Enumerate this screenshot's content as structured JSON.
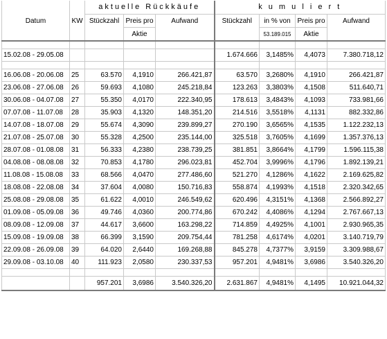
{
  "header": {
    "aktuelle": "aktuelle Rückkäufe",
    "kumuliert": "k u m u l i e r t",
    "datum": "Datum",
    "kw": "KW",
    "stueckzahl": "Stückzahl",
    "preis_pro": "Preis pro",
    "aktie": "Aktie",
    "aufwand": "Aufwand",
    "stueckzahl_k": "Stückzahl",
    "in_prozent_von": "in % von",
    "basis": "53.189.015",
    "preis_pro_k": "Preis pro",
    "aktie_k": "Aktie",
    "aufwand_k": "Aufwand"
  },
  "opening": {
    "datum": "15.02.08 - 29.05.08",
    "kw": "",
    "stueck": "",
    "preis": "",
    "aufwand": "",
    "k_stueck": "1.674.666",
    "k_pct": "3,1485%",
    "k_preis": "4,4073",
    "k_aufwand": "7.380.718,12"
  },
  "rows": [
    {
      "datum": "16.06.08 - 20.06.08",
      "kw": "25",
      "stueck": "63.570",
      "preis": "4,1910",
      "aufwand": "266.421,87",
      "k_stueck": "63.570",
      "k_pct": "3,2680%",
      "k_preis": "4,1910",
      "k_aufwand": "266.421,87"
    },
    {
      "datum": "23.06.08 - 27.06.08",
      "kw": "26",
      "stueck": "59.693",
      "preis": "4,1080",
      "aufwand": "245.218,84",
      "k_stueck": "123.263",
      "k_pct": "3,3803%",
      "k_preis": "4,1508",
      "k_aufwand": "511.640,71"
    },
    {
      "datum": "30.06.08 - 04.07.08",
      "kw": "27",
      "stueck": "55.350",
      "preis": "4,0170",
      "aufwand": "222.340,95",
      "k_stueck": "178.613",
      "k_pct": "3,4843%",
      "k_preis": "4,1093",
      "k_aufwand": "733.981,66"
    },
    {
      "datum": "07.07.08 - 11.07.08",
      "kw": "28",
      "stueck": "35.903",
      "preis": "4,1320",
      "aufwand": "148.351,20",
      "k_stueck": "214.516",
      "k_pct": "3,5518%",
      "k_preis": "4,1131",
      "k_aufwand": "882.332,86"
    },
    {
      "datum": "14.07.08 - 18.07.08",
      "kw": "29",
      "stueck": "55.674",
      "preis": "4,3090",
      "aufwand": "239.899,27",
      "k_stueck": "270.190",
      "k_pct": "3,6565%",
      "k_preis": "4,1535",
      "k_aufwand": "1.122.232,13"
    },
    {
      "datum": "21.07.08 - 25.07.08",
      "kw": "30",
      "stueck": "55.328",
      "preis": "4,2500",
      "aufwand": "235.144,00",
      "k_stueck": "325.518",
      "k_pct": "3,7605%",
      "k_preis": "4,1699",
      "k_aufwand": "1.357.376,13"
    },
    {
      "datum": "28.07.08 - 01.08.08",
      "kw": "31",
      "stueck": "56.333",
      "preis": "4,2380",
      "aufwand": "238.739,25",
      "k_stueck": "381.851",
      "k_pct": "3,8664%",
      "k_preis": "4,1799",
      "k_aufwand": "1.596.115,38"
    },
    {
      "datum": "04.08.08 - 08.08.08",
      "kw": "32",
      "stueck": "70.853",
      "preis": "4,1780",
      "aufwand": "296.023,81",
      "k_stueck": "452.704",
      "k_pct": "3,9996%",
      "k_preis": "4,1796",
      "k_aufwand": "1.892.139,21"
    },
    {
      "datum": "11.08.08 - 15.08.08",
      "kw": "33",
      "stueck": "68.566",
      "preis": "4,0470",
      "aufwand": "277.486,60",
      "k_stueck": "521.270",
      "k_pct": "4,1286%",
      "k_preis": "4,1622",
      "k_aufwand": "2.169.625,82"
    },
    {
      "datum": "18.08.08 - 22.08.08",
      "kw": "34",
      "stueck": "37.604",
      "preis": "4,0080",
      "aufwand": "150.716,83",
      "k_stueck": "558.874",
      "k_pct": "4,1993%",
      "k_preis": "4,1518",
      "k_aufwand": "2.320.342,65"
    },
    {
      "datum": "25.08.08 - 29.08.08",
      "kw": "35",
      "stueck": "61.622",
      "preis": "4,0010",
      "aufwand": "246.549,62",
      "k_stueck": "620.496",
      "k_pct": "4,3151%",
      "k_preis": "4,1368",
      "k_aufwand": "2.566.892,27"
    },
    {
      "datum": "01.09.08 - 05.09.08",
      "kw": "36",
      "stueck": "49.746",
      "preis": "4,0360",
      "aufwand": "200.774,86",
      "k_stueck": "670.242",
      "k_pct": "4,4086%",
      "k_preis": "4,1294",
      "k_aufwand": "2.767.667,13"
    },
    {
      "datum": "08.09.08 - 12.09.08",
      "kw": "37",
      "stueck": "44.617",
      "preis": "3,6600",
      "aufwand": "163.298,22",
      "k_stueck": "714.859",
      "k_pct": "4,4925%",
      "k_preis": "4,1001",
      "k_aufwand": "2.930.965,35"
    },
    {
      "datum": "15.09.08 - 19.09.08",
      "kw": "38",
      "stueck": "66.399",
      "preis": "3,1590",
      "aufwand": "209.754,44",
      "k_stueck": "781.258",
      "k_pct": "4,6174%",
      "k_preis": "4,0201",
      "k_aufwand": "3.140.719,79"
    },
    {
      "datum": "22.09.08 - 26.09.08",
      "kw": "39",
      "stueck": "64.020",
      "preis": "2,6440",
      "aufwand": "169.268,88",
      "k_stueck": "845.278",
      "k_pct": "4,7377%",
      "k_preis": "3,9159",
      "k_aufwand": "3.309.988,67"
    },
    {
      "datum": "29.09.08 - 03.10.08",
      "kw": "40",
      "stueck": "111.923",
      "preis": "2,0580",
      "aufwand": "230.337,53",
      "k_stueck": "957.201",
      "k_pct": "4,9481%",
      "k_preis": "3,6986",
      "k_aufwand": "3.540.326,20"
    }
  ],
  "total": {
    "stueck": "957.201",
    "preis": "3,6986",
    "aufwand": "3.540.326,20",
    "k_stueck": "2.631.867",
    "k_pct": "4,9481%",
    "k_preis": "4,1495",
    "k_aufwand": "10.921.044,32"
  }
}
